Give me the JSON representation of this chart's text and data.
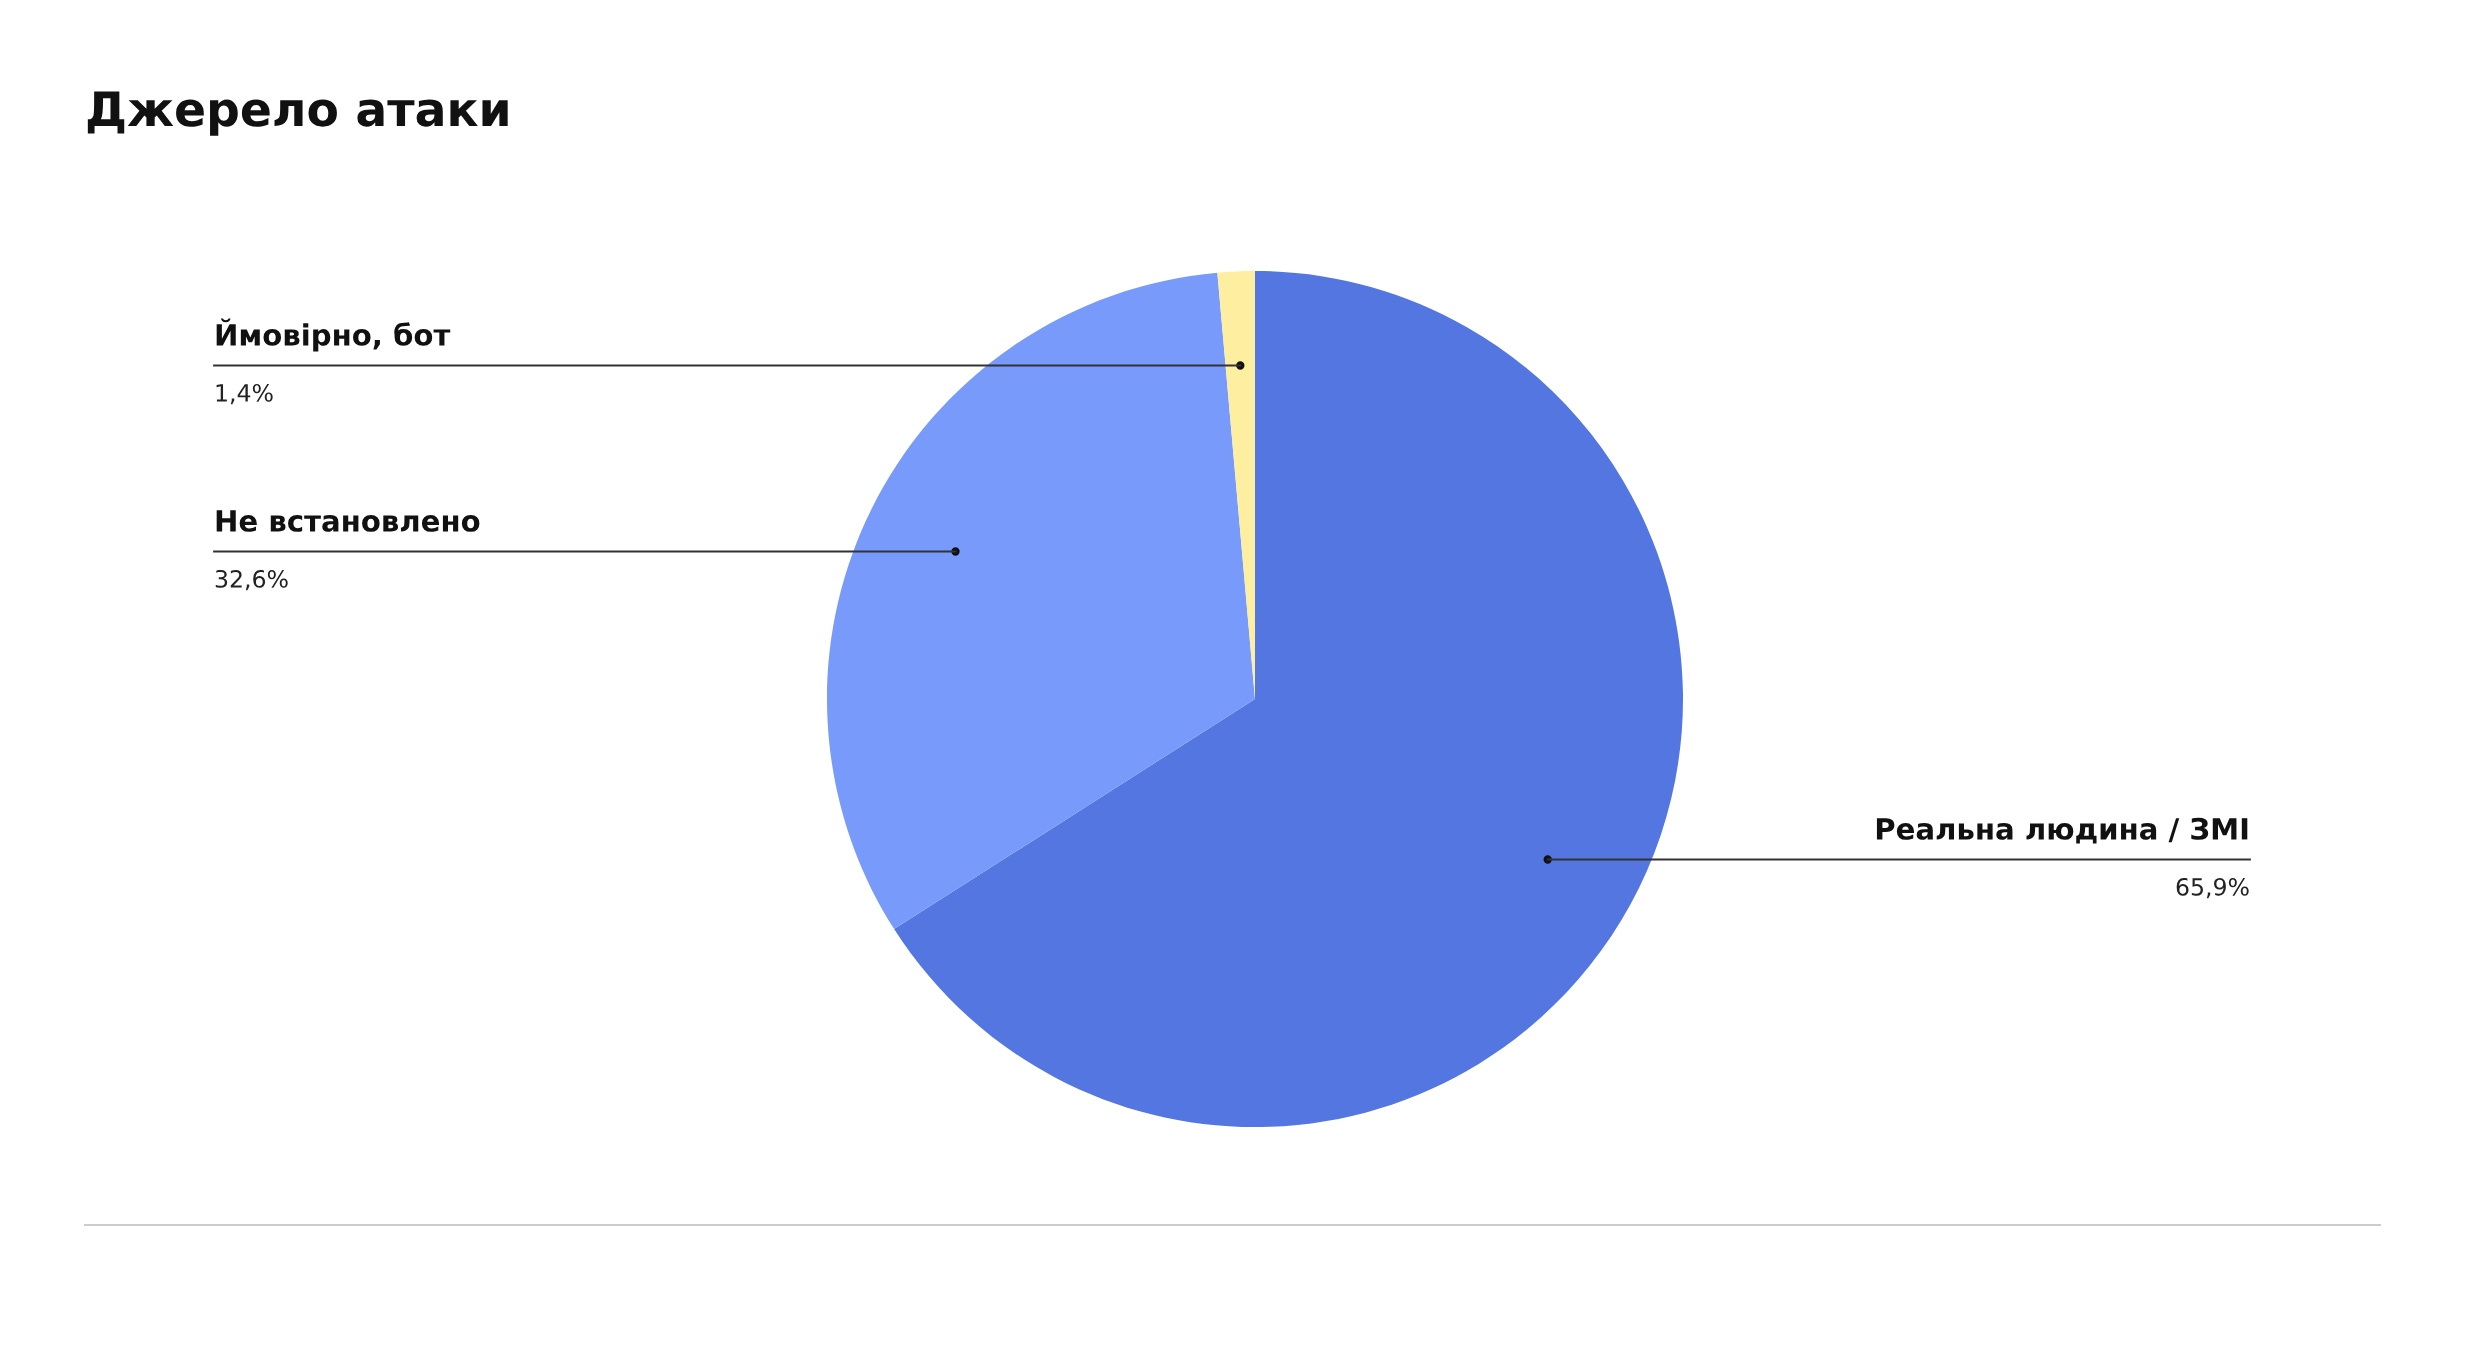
{
  "chart_data": {
    "type": "pie",
    "title": "Джерело атаки",
    "categories": [
      "Реальна людина / ЗМІ",
      "Не встановлено",
      "Ймовірно, бот"
    ],
    "values": [
      65.9,
      32.6,
      1.4
    ],
    "colors": [
      "#5476e0",
      "#789bfb",
      "#fdeea0"
    ],
    "value_labels": [
      "65,9%",
      "32,6%",
      "1,4%"
    ]
  }
}
